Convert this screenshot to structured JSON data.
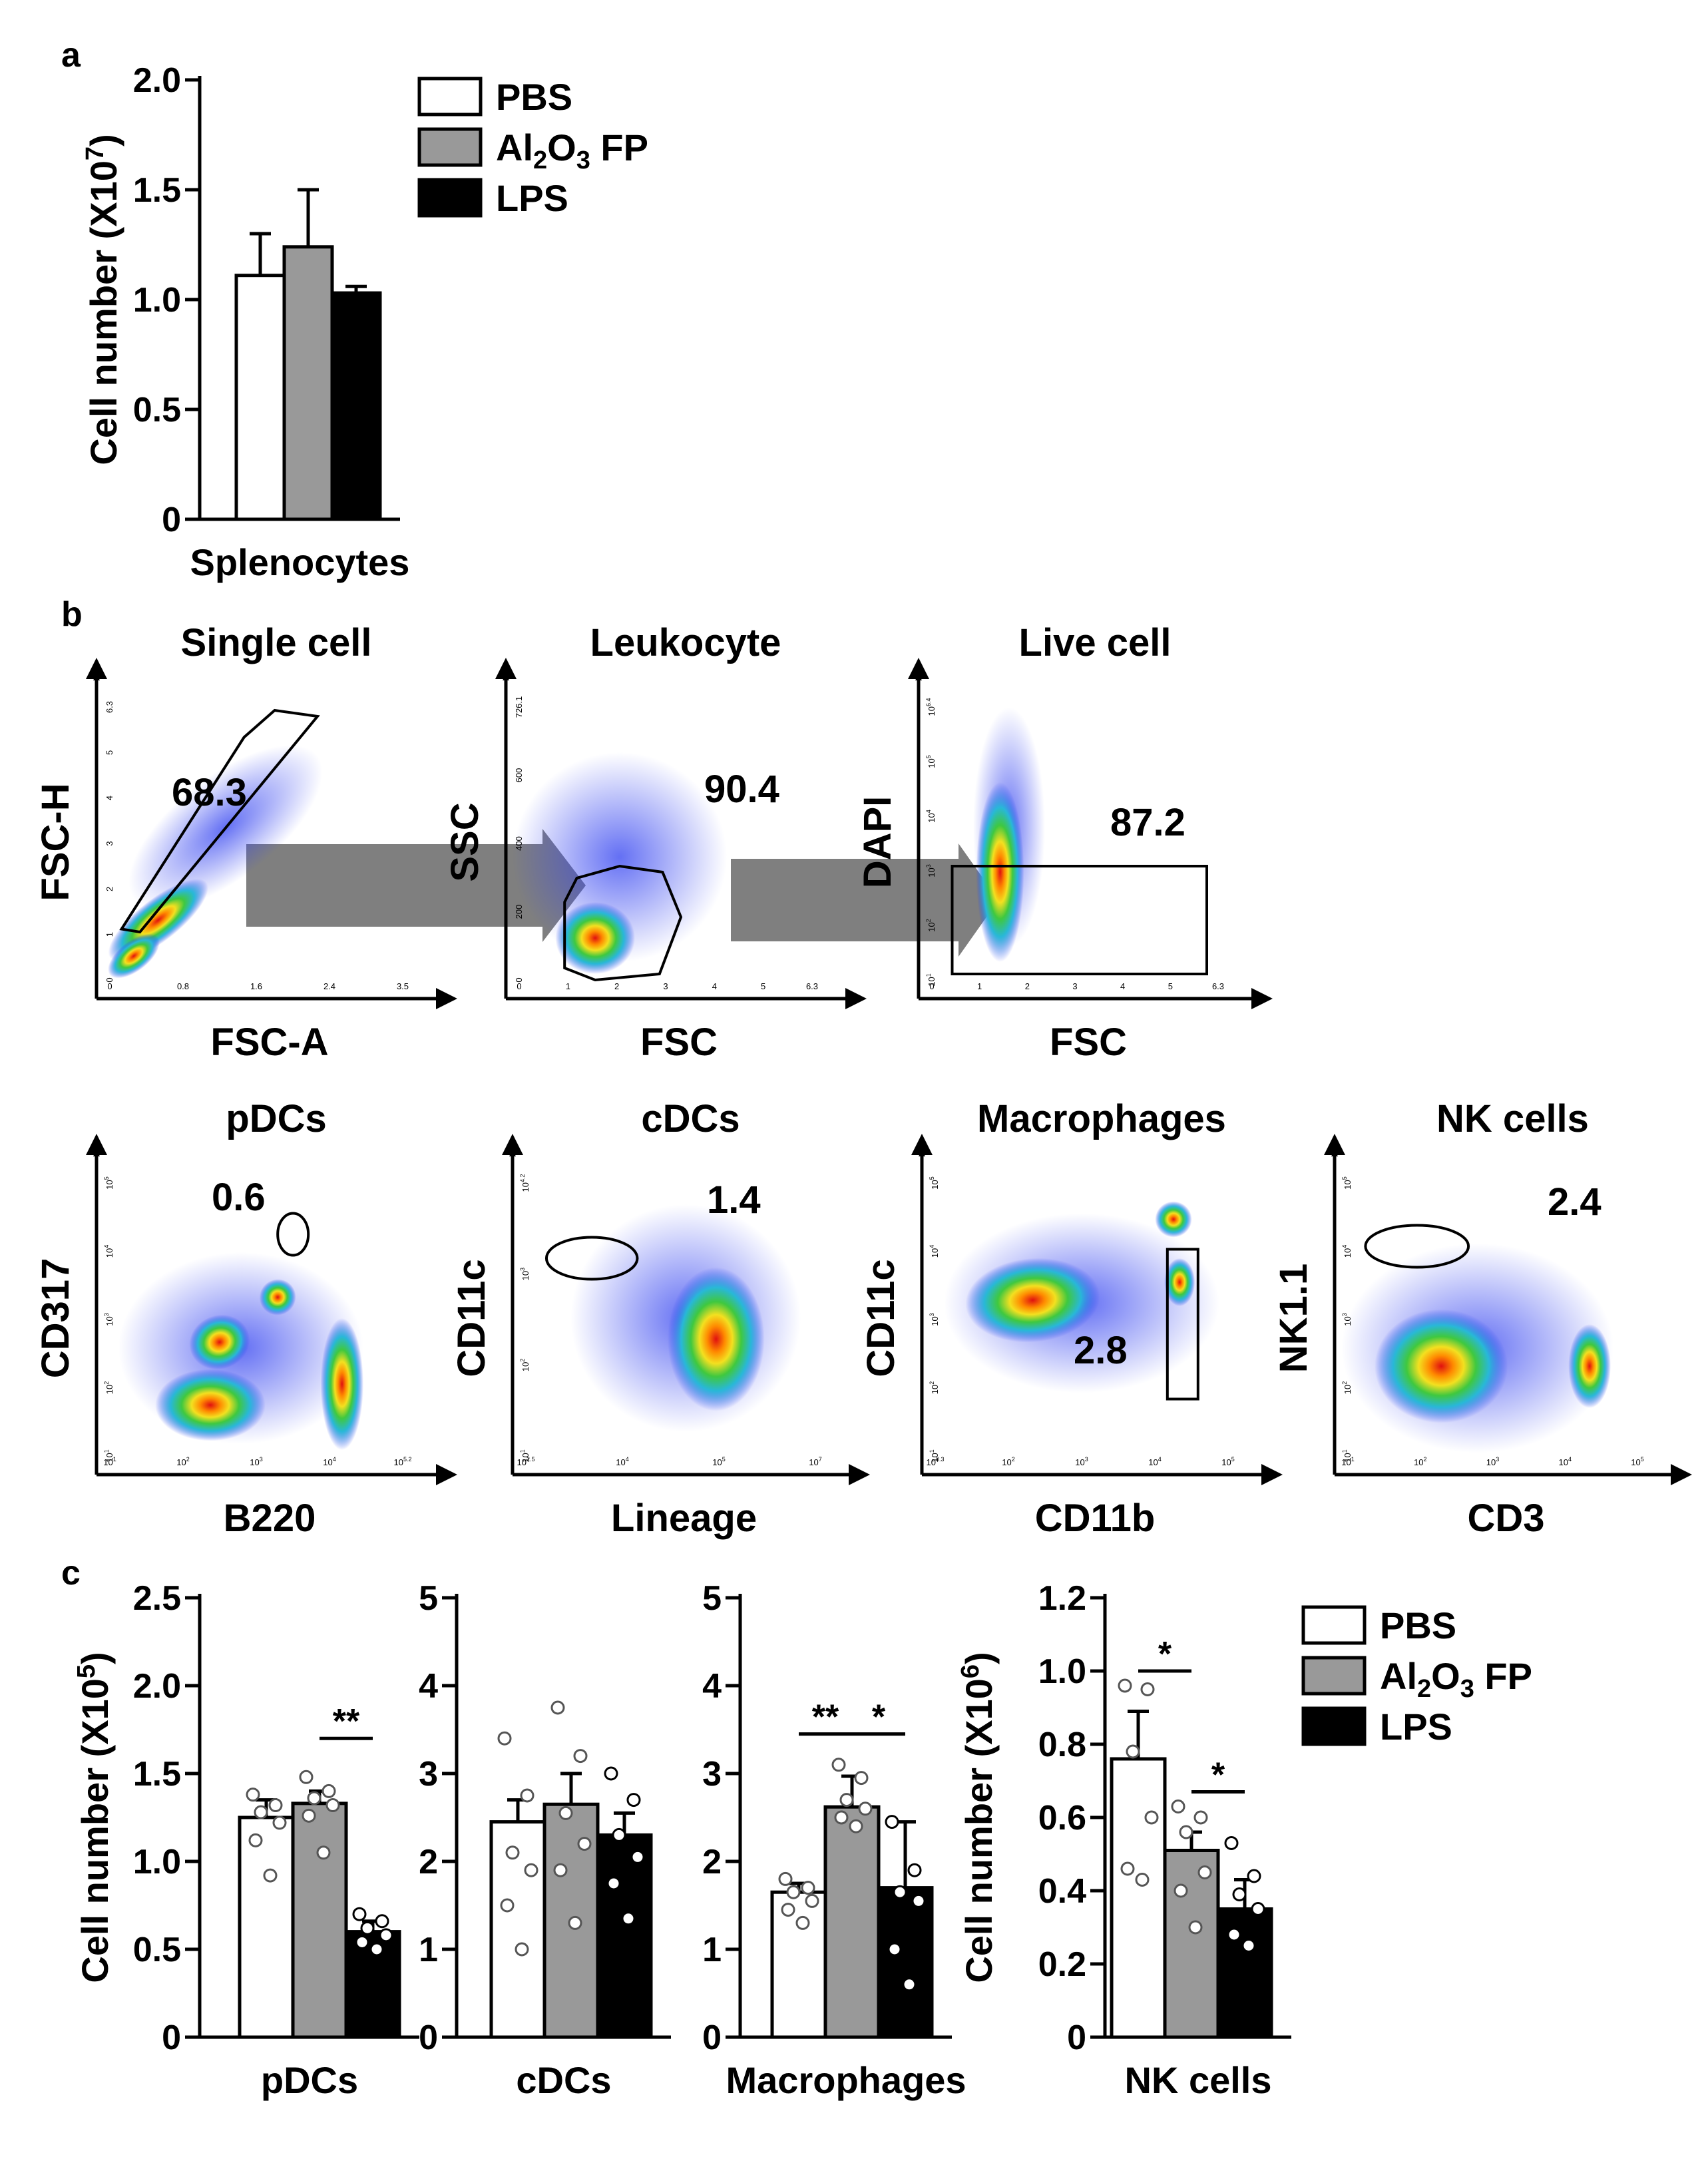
{
  "panel_labels": {
    "a": "a",
    "b": "b",
    "c": "c"
  },
  "legend": [
    {
      "label": "PBS",
      "color": "#ffffff"
    },
    {
      "label_main": "Al",
      "sub1": "2",
      "label_mid": "O",
      "sub2": "3",
      "label_end": " FP",
      "color": "#999999"
    },
    {
      "label": "LPS",
      "color": "#000000"
    }
  ],
  "chart_data": [
    {
      "type": "bar",
      "panel": "a",
      "categories": [
        "Splenocytes"
      ],
      "xlabel": "Splenocytes",
      "ylabel_main": "Cell number (X10",
      "ylabel_exp": "7",
      "ylabel_close": ")",
      "ylim": [
        0,
        2.0
      ],
      "yticks": [
        "0",
        "0.5",
        "1.0",
        "1.5",
        "2.0"
      ],
      "ytick_values": [
        0,
        0.5,
        1.0,
        1.5,
        2.0
      ],
      "series": [
        {
          "name": "PBS",
          "values": [
            1.11
          ],
          "errors": [
            0.19
          ]
        },
        {
          "name": "Al2O3 FP",
          "values": [
            1.24
          ],
          "errors": [
            0.26
          ]
        },
        {
          "name": "LPS",
          "values": [
            1.03
          ],
          "errors": [
            0.03
          ]
        }
      ]
    },
    {
      "type": "scatter",
      "panel": "b",
      "title": "Single cell",
      "xlabel": "FSC-A",
      "ylabel": "FSC-H",
      "gate_value": "68.3",
      "xticks": [
        "0",
        "0.8",
        "1.6",
        "2.4",
        "3.5"
      ],
      "yticks": [
        "0",
        "1",
        "2",
        "3",
        "4",
        "5",
        "6.3"
      ]
    },
    {
      "type": "scatter",
      "panel": "b",
      "title": "Leukocyte",
      "xlabel": "FSC",
      "ylabel": "SSC",
      "gate_value": "90.4",
      "xticks": [
        "0",
        "1",
        "2",
        "3",
        "4",
        "5",
        "6.3"
      ],
      "yticks": [
        "0",
        "200",
        "400",
        "600",
        "726.1"
      ]
    },
    {
      "type": "scatter",
      "panel": "b",
      "title": "Live cell",
      "xlabel": "FSC",
      "ylabel": "DAPI",
      "gate_value": "87.2",
      "xticks": [
        "0",
        "1",
        "2",
        "3",
        "4",
        "5",
        "6.3"
      ],
      "yticks": [
        "10^1",
        "10^2",
        "10^3",
        "10^4",
        "10^5",
        "10^6.4"
      ]
    },
    {
      "type": "scatter",
      "panel": "b",
      "title": "pDCs",
      "xlabel": "B220",
      "ylabel": "CD317",
      "gate_value": "0.6",
      "xticks": [
        "10^1",
        "10^2",
        "10^3",
        "10^4",
        "10^5.2"
      ],
      "yticks": [
        "10^1",
        "10^2",
        "10^3",
        "10^4",
        "10^5"
      ]
    },
    {
      "type": "scatter",
      "panel": "b",
      "title": "cDCs",
      "xlabel": "Lineage",
      "ylabel": "CD11c",
      "gate_value": "1.4",
      "xticks": [
        "10^2.5",
        "10^4",
        "10^5",
        "10^7"
      ],
      "yticks": [
        "10^1",
        "10^2",
        "10^3",
        "10^4.2"
      ]
    },
    {
      "type": "scatter",
      "panel": "b",
      "title": "Macrophages",
      "xlabel": "CD11b",
      "ylabel": "CD11c",
      "gate_value": "2.8",
      "xticks": [
        "10^0.3",
        "10^2",
        "10^3",
        "10^4",
        "10^5"
      ],
      "yticks": [
        "10^1",
        "10^2",
        "10^3",
        "10^4",
        "10^5"
      ]
    },
    {
      "type": "scatter",
      "panel": "b",
      "title": "NK cells",
      "xlabel": "CD3",
      "ylabel": "NK1.1",
      "gate_value": "2.4",
      "xticks": [
        "10^1",
        "10^2",
        "10^3",
        "10^4",
        "10^5"
      ],
      "yticks": [
        "10^1",
        "10^2",
        "10^3",
        "10^4",
        "10^5"
      ]
    },
    {
      "type": "bar",
      "panel": "c",
      "categories": [
        "pDCs"
      ],
      "xlabel": "pDCs",
      "ylabel_main": "Cell number (X10",
      "ylabel_exp": "5",
      "ylabel_close": ")",
      "ylim": [
        0,
        2.5
      ],
      "yticks": [
        "0",
        "0.5",
        "1.0",
        "1.5",
        "2.0",
        "2.5"
      ],
      "ytick_values": [
        0,
        0.5,
        1.0,
        1.5,
        2.0,
        2.5
      ],
      "series": [
        {
          "name": "PBS",
          "values": [
            1.25
          ],
          "errors": [
            0.1
          ],
          "points": [
            1.38,
            1.32,
            1.28,
            1.22,
            1.12,
            0.92
          ]
        },
        {
          "name": "Al2O3 FP",
          "values": [
            1.33
          ],
          "errors": [
            0.07
          ],
          "points": [
            1.48,
            1.4,
            1.36,
            1.32,
            1.26,
            1.05
          ]
        },
        {
          "name": "LPS",
          "values": [
            0.6
          ],
          "errors": [
            0.06
          ],
          "points": [
            0.7,
            0.66,
            0.62,
            0.58,
            0.54,
            0.5
          ]
        }
      ],
      "significance": [
        {
          "between": [
            1,
            2
          ],
          "label": "**",
          "y": 1.7
        }
      ]
    },
    {
      "type": "bar",
      "panel": "c",
      "categories": [
        "cDCs"
      ],
      "xlabel": "cDCs",
      "ylim": [
        0,
        5
      ],
      "yticks": [
        "0",
        "1",
        "2",
        "3",
        "4",
        "5"
      ],
      "ytick_values": [
        0,
        1,
        2,
        3,
        4,
        5
      ],
      "series": [
        {
          "name": "PBS",
          "values": [
            2.45
          ],
          "errors": [
            0.25
          ],
          "points": [
            3.4,
            2.75,
            2.1,
            1.9,
            1.5,
            1.0
          ]
        },
        {
          "name": "Al2O3 FP",
          "values": [
            2.65
          ],
          "errors": [
            0.35
          ],
          "points": [
            3.75,
            3.2,
            2.55,
            2.2,
            1.9,
            1.3
          ]
        },
        {
          "name": "LPS",
          "values": [
            2.3
          ],
          "errors": [
            0.25
          ],
          "points": [
            3.0,
            2.7,
            2.3,
            2.05,
            1.75,
            1.35
          ]
        }
      ]
    },
    {
      "type": "bar",
      "panel": "c",
      "categories": [
        "Macrophages"
      ],
      "xlabel": "Macrophages",
      "ylim": [
        0,
        5
      ],
      "yticks": [
        "0",
        "1",
        "2",
        "3",
        "4",
        "5"
      ],
      "ytick_values": [
        0,
        1,
        2,
        3,
        4,
        5
      ],
      "series": [
        {
          "name": "PBS",
          "values": [
            1.65
          ],
          "errors": [
            0.1
          ],
          "points": [
            1.8,
            1.7,
            1.65,
            1.55,
            1.45,
            1.3
          ]
        },
        {
          "name": "Al2O3 FP",
          "values": [
            2.62
          ],
          "errors": [
            0.35
          ],
          "points": [
            3.1,
            2.95,
            2.7,
            2.6,
            2.5,
            2.4
          ]
        },
        {
          "name": "LPS",
          "values": [
            1.7
          ],
          "errors": [
            0.75
          ],
          "points": [
            2.45,
            1.9,
            1.65,
            1.55,
            1.0,
            0.6
          ]
        }
      ],
      "significance": [
        {
          "between": [
            0,
            1
          ],
          "label": "**",
          "y": 3.45
        },
        {
          "between": [
            1,
            2
          ],
          "label": "*",
          "y": 3.45
        }
      ]
    },
    {
      "type": "bar",
      "panel": "c",
      "categories": [
        "NK cells"
      ],
      "xlabel": "NK cells",
      "ylabel_main": "Cell number (X10",
      "ylabel_exp": "6",
      "ylabel_close": ")",
      "ylim": [
        0,
        1.2
      ],
      "yticks": [
        "0",
        "0.2",
        "0.4",
        "0.6",
        "0.8",
        "1.0",
        "1.2"
      ],
      "ytick_values": [
        0,
        0.2,
        0.4,
        0.6,
        0.8,
        1.0,
        1.2
      ],
      "series": [
        {
          "name": "PBS",
          "values": [
            0.76
          ],
          "errors": [
            0.13
          ],
          "points": [
            0.96,
            0.95,
            0.78,
            0.6,
            0.46,
            0.43
          ]
        },
        {
          "name": "Al2O3 FP",
          "values": [
            0.51
          ],
          "errors": [
            0.05
          ],
          "points": [
            0.63,
            0.6,
            0.56,
            0.45,
            0.4,
            0.3
          ]
        },
        {
          "name": "LPS",
          "values": [
            0.35
          ],
          "errors": [
            0.08
          ],
          "points": [
            0.53,
            0.44,
            0.39,
            0.35,
            0.28,
            0.25
          ]
        }
      ],
      "significance": [
        {
          "between": [
            0,
            1
          ],
          "label": "*",
          "y": 1.0
        },
        {
          "between": [
            1,
            2
          ],
          "label": "*",
          "y": 0.67
        }
      ]
    }
  ]
}
